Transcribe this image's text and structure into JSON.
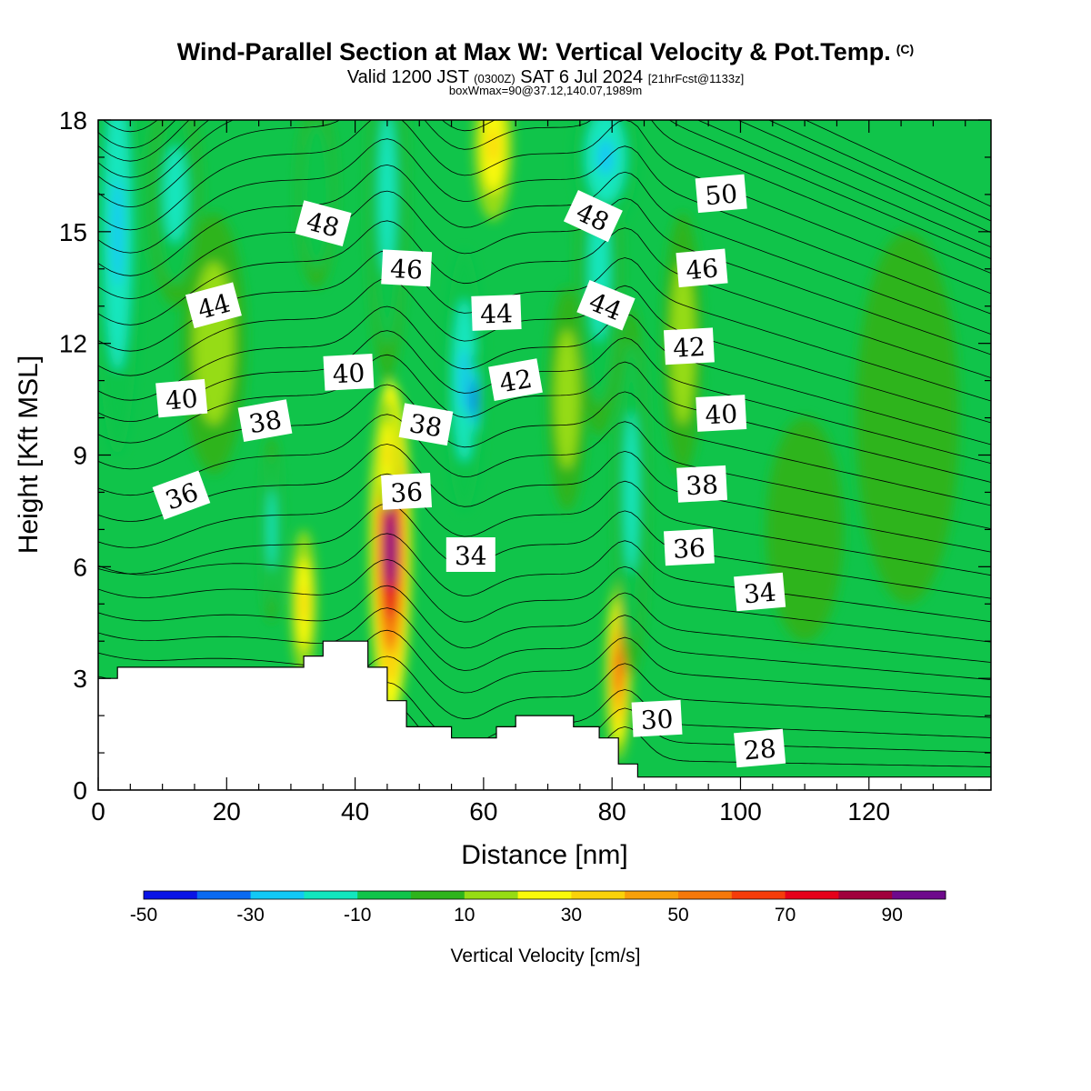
{
  "header": {
    "title": "Wind-Parallel Section at Max W: Vertical Velocity & Pot.Temp.",
    "title_mark": "(C)",
    "valid_prefix": "Valid 1200 JST",
    "valid_utc": "(0300Z)",
    "valid_date": "SAT 6 Jul 2024",
    "forecast_info": "[21hrFcst@1133z]",
    "box_info": "boxWmax=90@37.12,140.07,1989m"
  },
  "chart_data": {
    "type": "heatmap",
    "xlabel": "Distance [nm]",
    "ylabel": "Height [Kft MSL]",
    "xlim": [
      0,
      139
    ],
    "ylim": [
      0,
      18
    ],
    "x_ticks": [
      "0",
      "20",
      "40",
      "60",
      "80",
      "100",
      "120"
    ],
    "y_ticks": [
      "0",
      "3",
      "6",
      "9",
      "12",
      "15",
      "18"
    ],
    "x_tick_values": [
      0,
      20,
      40,
      60,
      80,
      100,
      120
    ],
    "y_tick_values": [
      0,
      3,
      6,
      9,
      12,
      15,
      18
    ],
    "background_field_color": "#10c44a",
    "colorbar": {
      "title": "Vertical Velocity [cm/s]",
      "bounds": [
        -50,
        100
      ],
      "step": 10,
      "labels": [
        "-50",
        "-30",
        "-10",
        "10",
        "30",
        "50",
        "70",
        "90"
      ],
      "label_values": [
        -50,
        -30,
        -10,
        10,
        30,
        50,
        70,
        90
      ],
      "colors": [
        "#0a14e6",
        "#0a6af2",
        "#12c8f5",
        "#12e6be",
        "#10c44a",
        "#2eb41c",
        "#96dc14",
        "#fafa0a",
        "#fad20a",
        "#f8a00a",
        "#f5780a",
        "#f53c0a",
        "#e6001a",
        "#a0003c",
        "#6e0a8c"
      ]
    },
    "terrain_profile": [
      [
        0,
        3
      ],
      [
        3,
        3
      ],
      [
        3,
        3.3
      ],
      [
        32,
        3.3
      ],
      [
        32,
        3.6
      ],
      [
        35,
        3.6
      ],
      [
        35,
        4
      ],
      [
        42,
        4
      ],
      [
        42,
        3.3
      ],
      [
        45,
        3.3
      ],
      [
        45,
        2.4
      ],
      [
        48,
        2.4
      ],
      [
        48,
        1.7
      ],
      [
        55,
        1.7
      ],
      [
        55,
        1.4
      ],
      [
        62,
        1.4
      ],
      [
        62,
        1.7
      ],
      [
        65,
        1.7
      ],
      [
        65,
        2
      ],
      [
        74,
        2
      ],
      [
        74,
        1.7
      ],
      [
        78,
        1.7
      ],
      [
        78,
        1.4
      ],
      [
        81,
        1.4
      ],
      [
        81,
        0.7
      ],
      [
        84,
        0.7
      ],
      [
        84,
        0.35
      ],
      [
        139,
        0.35
      ]
    ],
    "w_features": [
      {
        "x": 45.5,
        "y": 6.5,
        "rx": 3.2,
        "ry": 4.5,
        "w": 90
      },
      {
        "x": 45.0,
        "y": 9.0,
        "rx": 1.8,
        "ry": 1.5,
        "w": 30
      },
      {
        "x": 32.0,
        "y": 5.0,
        "rx": 2.0,
        "ry": 2.0,
        "w": 30
      },
      {
        "x": 81.0,
        "y": 3.2,
        "rx": 2.0,
        "ry": 2.4,
        "w": 60
      },
      {
        "x": 61.5,
        "y": 17.3,
        "rx": 3.0,
        "ry": 2.0,
        "w": 30
      },
      {
        "x": 18.0,
        "y": 12.0,
        "rx": 5.0,
        "ry": 3.5,
        "w": 15
      },
      {
        "x": 73.0,
        "y": 10.5,
        "rx": 3.0,
        "ry": 3.0,
        "w": 15
      },
      {
        "x": 91.0,
        "y": 12.0,
        "rx": 3.0,
        "ry": 3.5,
        "w": 15
      },
      {
        "x": 126.0,
        "y": 10.0,
        "rx": 8.0,
        "ry": 5.0,
        "w": 5
      },
      {
        "x": 110.0,
        "y": 7.0,
        "rx": 6.0,
        "ry": 3.0,
        "w": 5
      },
      {
        "x": 3.0,
        "y": 15.0,
        "rx": 3.5,
        "ry": 6.0,
        "w": -25
      },
      {
        "x": 12.0,
        "y": 16.0,
        "rx": 4.0,
        "ry": 3.0,
        "w": -15
      },
      {
        "x": 57.0,
        "y": 11.0,
        "rx": 3.0,
        "ry": 3.5,
        "w": -25
      },
      {
        "x": 58.5,
        "y": 10.5,
        "rx": 1.0,
        "ry": 1.2,
        "w": -45
      },
      {
        "x": 78.0,
        "y": 14.0,
        "rx": 3.5,
        "ry": 4.5,
        "w": -15
      },
      {
        "x": 83.0,
        "y": 8.0,
        "rx": 2.5,
        "ry": 5.0,
        "w": -15
      },
      {
        "x": 79.0,
        "y": 17.0,
        "rx": 5.0,
        "ry": 2.0,
        "w": -25
      },
      {
        "x": 45.0,
        "y": 16.0,
        "rx": 3.0,
        "ry": 5.0,
        "w": -15
      },
      {
        "x": 34.0,
        "y": 16.0,
        "rx": 3.0,
        "ry": 2.5,
        "w": -10
      },
      {
        "x": 27.0,
        "y": 7.0,
        "rx": 1.5,
        "ry": 2.5,
        "w": -15
      }
    ],
    "theta_contours": {
      "levels": [
        28,
        30,
        32,
        34,
        36,
        38,
        40,
        42,
        44,
        46,
        48,
        50
      ],
      "base_heights": [
        0.8,
        1.8,
        3.2,
        4.4,
        5.8,
        7.4,
        9.0,
        10.6,
        11.9,
        13.4,
        15.0,
        16.4
      ],
      "level_spacing": 0.55,
      "top_value": 52
    },
    "contour_labels": [
      {
        "text": "50",
        "x": 97,
        "y": 16.0,
        "angle": -5
      },
      {
        "text": "48",
        "x": 35,
        "y": 15.2,
        "angle": 15
      },
      {
        "text": "48",
        "x": 77,
        "y": 15.4,
        "angle": 25
      },
      {
        "text": "46",
        "x": 48,
        "y": 14.0,
        "angle": 3
      },
      {
        "text": "46",
        "x": 94,
        "y": 14.0,
        "angle": -5
      },
      {
        "text": "44",
        "x": 18,
        "y": 13.0,
        "angle": -15
      },
      {
        "text": "44",
        "x": 62,
        "y": 12.8,
        "angle": -2
      },
      {
        "text": "44",
        "x": 79,
        "y": 13.0,
        "angle": 22
      },
      {
        "text": "42",
        "x": 92,
        "y": 11.9,
        "angle": -3
      },
      {
        "text": "42",
        "x": 65,
        "y": 11.0,
        "angle": -10
      },
      {
        "text": "40",
        "x": 39,
        "y": 11.2,
        "angle": -3
      },
      {
        "text": "40",
        "x": 13,
        "y": 10.5,
        "angle": -5
      },
      {
        "text": "40",
        "x": 97,
        "y": 10.1,
        "angle": -3
      },
      {
        "text": "38",
        "x": 26,
        "y": 9.9,
        "angle": -10
      },
      {
        "text": "38",
        "x": 51,
        "y": 9.8,
        "angle": 10
      },
      {
        "text": "38",
        "x": 94,
        "y": 8.2,
        "angle": -3
      },
      {
        "text": "36",
        "x": 13,
        "y": 7.9,
        "angle": -20
      },
      {
        "text": "36",
        "x": 48,
        "y": 8.0,
        "angle": -3
      },
      {
        "text": "36",
        "x": 92,
        "y": 6.5,
        "angle": -3
      },
      {
        "text": "34",
        "x": 58,
        "y": 6.3,
        "angle": 0
      },
      {
        "text": "34",
        "x": 103,
        "y": 5.3,
        "angle": -5
      },
      {
        "text": "30",
        "x": 87,
        "y": 1.9,
        "angle": -3
      },
      {
        "text": "28",
        "x": 103,
        "y": 1.1,
        "angle": -5
      }
    ]
  }
}
